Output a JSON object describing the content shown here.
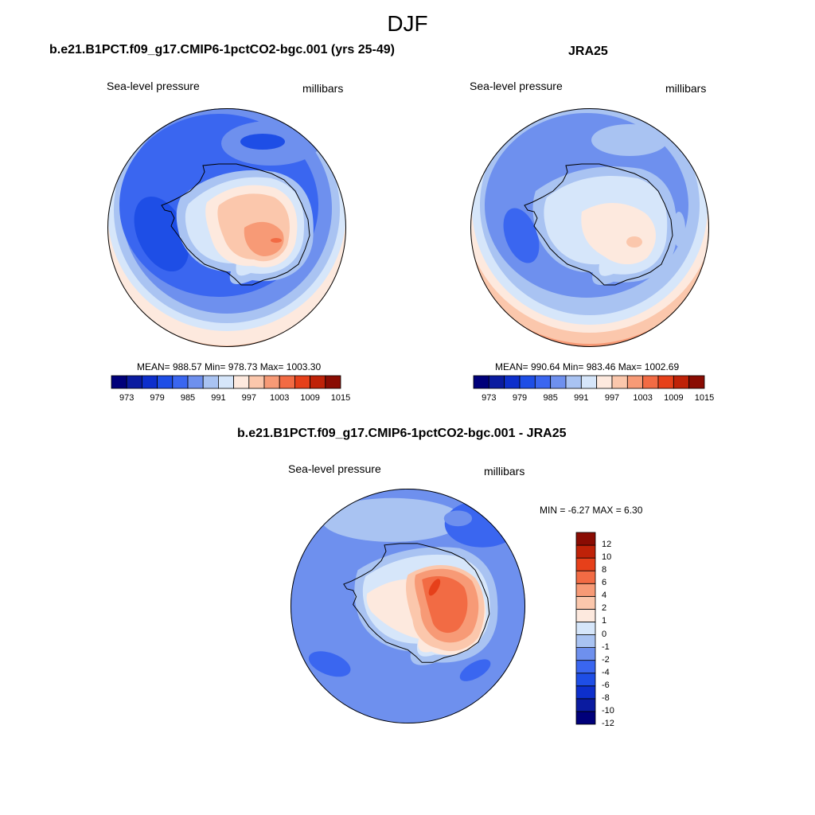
{
  "figure": {
    "title": "DJF"
  },
  "panels": [
    {
      "title": "b.e21.B1PCT.f09_g17.CMIP6-1pctCO2-bgc.001 (yrs 25-49)",
      "left_label": "Sea-level pressure",
      "right_label": "millibars",
      "stats": "MEAN= 988.57  Min= 978.73  Max= 1003.30"
    },
    {
      "title": "JRA25",
      "left_label": "Sea-level pressure",
      "right_label": "millibars",
      "stats": "MEAN= 990.64  Min= 983.46  Max= 1002.69"
    },
    {
      "title": "b.e21.B1PCT.f09_g17.CMIP6-1pctCO2-bgc.001 - JRA25",
      "left_label": "Sea-level pressure",
      "right_label": "millibars",
      "stats": "MIN =  -6.27 MAX =   6.30"
    }
  ],
  "colorbar_abs": {
    "colors": [
      "#00007a",
      "#0a1ba0",
      "#0d2fcc",
      "#1e4ee6",
      "#3a66f0",
      "#6e90ee",
      "#a9c3f2",
      "#d6e6fa",
      "#fde9de",
      "#fbc7ac",
      "#f79a76",
      "#f26b44",
      "#e6401a",
      "#bf2208",
      "#8a0c03"
    ],
    "labels": [
      "973",
      "979",
      "985",
      "991",
      "997",
      "1003",
      "1009",
      "1015"
    ]
  },
  "colorbar_diff": {
    "colors": [
      "#00007a",
      "#0a1ba0",
      "#0d2fcc",
      "#1e4ee6",
      "#3a66f0",
      "#6e90ee",
      "#a9c3f2",
      "#d6e6fa",
      "#fde9de",
      "#fbc7ac",
      "#f79a76",
      "#f26b44",
      "#e6401a",
      "#bf2208",
      "#8a0c03"
    ],
    "labels": [
      "12",
      "10",
      "8",
      "6",
      "4",
      "2",
      "1",
      "0",
      "-1",
      "-2",
      "-4",
      "-6",
      "-8",
      "-10",
      "-12"
    ]
  }
}
